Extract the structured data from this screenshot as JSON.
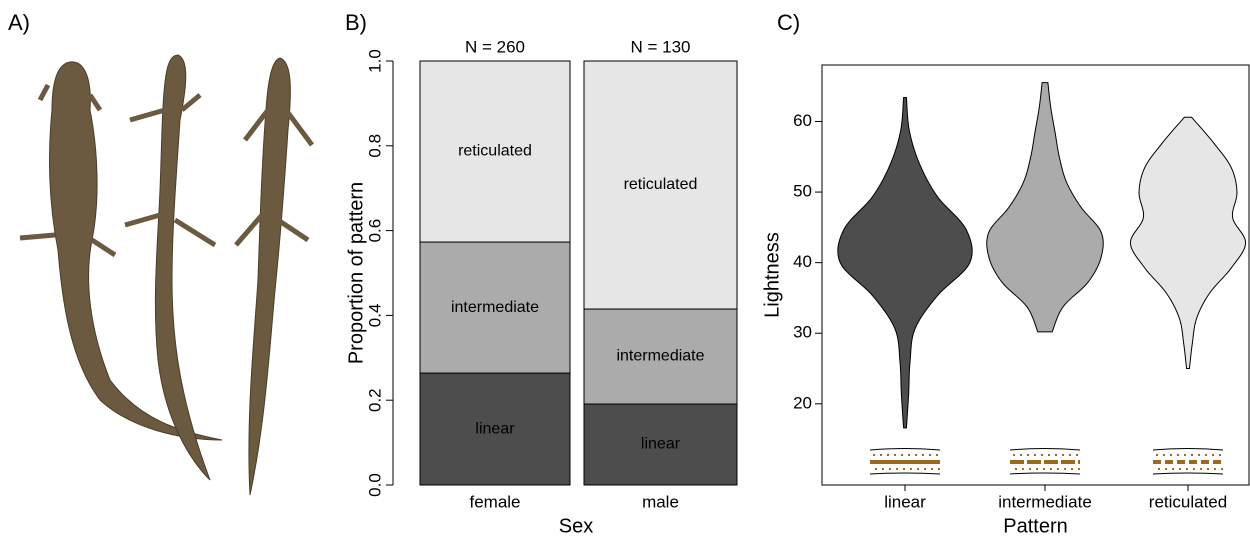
{
  "panel_a": {
    "panel_label": "A)"
  },
  "chart_data": [
    {
      "type": "stacked_bar",
      "panel_label": "B)",
      "xlabel": "Sex",
      "ylabel": "Proportion of pattern",
      "categories": [
        "female",
        "male"
      ],
      "annotations": [
        "N = 260",
        "N = 130"
      ],
      "series": [
        {
          "name": "linear",
          "color": "#4d4d4d",
          "values": [
            0.264,
            0.191
          ]
        },
        {
          "name": "intermediate",
          "color": "#ababab",
          "values": [
            0.309,
            0.224
          ]
        },
        {
          "name": "reticulated",
          "color": "#e6e6e6",
          "values": [
            0.427,
            0.585
          ]
        }
      ],
      "ylim": [
        0,
        1
      ],
      "yticks": [
        {
          "value": 0,
          "label": "0.0"
        },
        0.2,
        0.4,
        0.6,
        0.8,
        {
          "value": 1,
          "label": "1.0"
        }
      ]
    },
    {
      "type": "violin",
      "panel_label": "C)",
      "xlabel": "Pattern",
      "ylabel": "Lightness",
      "categories": [
        "linear",
        "intermediate",
        "reticulated"
      ],
      "colors": [
        "#4d4d4d",
        "#ababab",
        "#e6e6e6"
      ],
      "violins": [
        {
          "min": 16.6,
          "max": 63.4,
          "density": [
            0.02,
            0.05,
            0.07,
            0.14,
            0.45,
            0.9,
            0.85,
            0.45,
            0.2,
            0.06,
            0.02
          ]
        },
        {
          "min": 30.2,
          "max": 65.5,
          "density": [
            0.1,
            0.25,
            0.6,
            0.78,
            0.78,
            0.5,
            0.3,
            0.2,
            0.14,
            0.08,
            0.04
          ]
        },
        {
          "min": 25,
          "max": 60.6,
          "density": [
            0.02,
            0.06,
            0.12,
            0.3,
            0.6,
            0.8,
            0.62,
            0.68,
            0.6,
            0.35,
            0.05
          ]
        }
      ],
      "ylim": [
        8.5,
        68
      ],
      "yticks": [
        20,
        30,
        40,
        50,
        60
      ]
    }
  ]
}
